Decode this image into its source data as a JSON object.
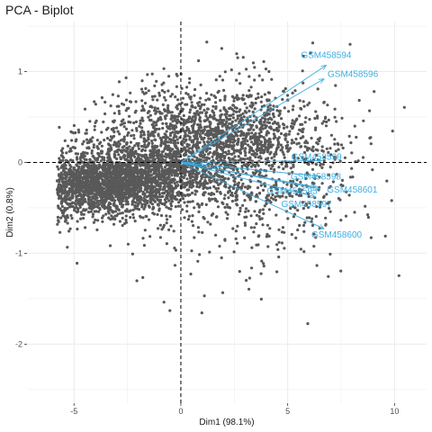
{
  "chart_data": {
    "type": "scatter",
    "title": "PCA - Biplot",
    "xlabel": "Dim1 (98.1%)",
    "ylabel": "Dim2 (0.8%)",
    "xlim": [
      -7.2,
      11.5
    ],
    "ylim": [
      -2.65,
      1.55
    ],
    "x_ticks": [
      -5,
      0,
      5,
      10
    ],
    "y_ticks": [
      -2,
      -1,
      0,
      1
    ],
    "x_tick_labels": [
      "-5",
      "0",
      "5",
      "10"
    ],
    "y_tick_labels": [
      "-2",
      "-1",
      "0",
      "1"
    ],
    "grid": true,
    "reference_lines": {
      "x": 0,
      "y": 0,
      "style": "dashed"
    },
    "point_color": "#595959",
    "arrow_color": "#3daee0",
    "variables": [
      {
        "name": "GSM458594",
        "x": 6.8,
        "y": 1.07
      },
      {
        "name": "GSM458596",
        "x": 6.7,
        "y": 0.92
      },
      {
        "name": "GSM458599",
        "x": 6.6,
        "y": 0.02
      },
      {
        "name": "GSM458598",
        "x": 6.4,
        "y": -0.15
      },
      {
        "name": "GSM458595",
        "x": 6.3,
        "y": -0.27
      },
      {
        "name": "GSM458601",
        "x": 6.5,
        "y": -0.29
      },
      {
        "name": "GSM458597",
        "x": 6.3,
        "y": -0.38
      },
      {
        "name": "GSM458600",
        "x": 6.7,
        "y": -0.73
      }
    ]
  }
}
